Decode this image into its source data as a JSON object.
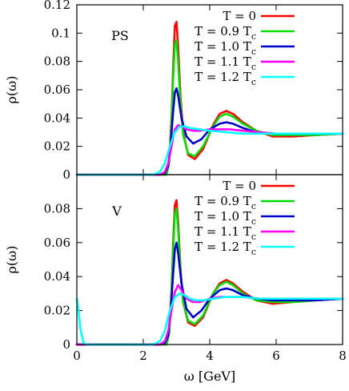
{
  "chart_data": [
    {
      "type": "line",
      "panel_label": "PS",
      "xlabel": "",
      "ylabel": "ρ(ω)",
      "xlim": [
        0,
        8
      ],
      "ylim": [
        0,
        0.12
      ],
      "x_ticks": [
        "",
        "",
        "",
        "",
        ""
      ],
      "y_ticks": [
        "0",
        "0.02",
        "0.04",
        "0.06",
        "0.08",
        "0.1",
        "0.12"
      ],
      "y_tick_values": [
        0,
        0.02,
        0.04,
        0.06,
        0.08,
        0.1,
        0.12
      ],
      "legend_position": "top-right",
      "series": [
        {
          "name": "T = 0",
          "name_main": "T = 0",
          "name_sub": "",
          "color": "#ff0000",
          "x": [
            0,
            2.5,
            2.7,
            2.78,
            2.85,
            2.9,
            2.95,
            3.0,
            3.05,
            3.12,
            3.2,
            3.35,
            3.55,
            3.8,
            4.1,
            4.3,
            4.5,
            4.7,
            5.0,
            5.4,
            5.9,
            6.5,
            7.2,
            8.0
          ],
          "y": [
            0,
            0,
            0,
            0.01,
            0.04,
            0.075,
            0.105,
            0.108,
            0.09,
            0.055,
            0.03,
            0.014,
            0.011,
            0.018,
            0.035,
            0.043,
            0.045,
            0.043,
            0.037,
            0.031,
            0.027,
            0.027,
            0.028,
            0.029
          ]
        },
        {
          "name": "T = 0.9 Tc",
          "name_main": "T = 0.9 T",
          "name_sub": "c",
          "color": "#00dd00",
          "x": [
            0,
            2.5,
            2.7,
            2.78,
            2.85,
            2.9,
            2.95,
            3.0,
            3.05,
            3.12,
            3.2,
            3.35,
            3.55,
            3.8,
            4.1,
            4.3,
            4.5,
            4.7,
            5.0,
            5.4,
            5.9,
            6.5,
            7.2,
            8.0
          ],
          "y": [
            0,
            0,
            0,
            0.009,
            0.036,
            0.068,
            0.092,
            0.095,
            0.08,
            0.05,
            0.028,
            0.015,
            0.013,
            0.02,
            0.034,
            0.041,
            0.043,
            0.041,
            0.036,
            0.031,
            0.028,
            0.028,
            0.028,
            0.029
          ]
        },
        {
          "name": "T = 1.0 Tc",
          "name_main": "T = 1.0 T",
          "name_sub": "c",
          "color": "#0000cc",
          "x": [
            0,
            2.5,
            2.65,
            2.75,
            2.82,
            2.9,
            2.95,
            3.0,
            3.05,
            3.15,
            3.3,
            3.5,
            3.75,
            4.0,
            4.3,
            4.5,
            4.7,
            5.0,
            5.4,
            5.9,
            6.5,
            7.2,
            8.0
          ],
          "y": [
            0,
            0,
            0.001,
            0.006,
            0.02,
            0.045,
            0.058,
            0.061,
            0.056,
            0.04,
            0.027,
            0.022,
            0.025,
            0.032,
            0.036,
            0.037,
            0.036,
            0.033,
            0.03,
            0.029,
            0.029,
            0.029,
            0.029
          ]
        },
        {
          "name": "T = 1.1 Tc",
          "name_main": "T = 1.1 T",
          "name_sub": "c",
          "color": "#ff00ff",
          "x": [
            0,
            2.5,
            2.65,
            2.75,
            2.85,
            2.95,
            3.05,
            3.15,
            3.3,
            3.5,
            3.7,
            4.0,
            4.3,
            4.6,
            5.0,
            5.5,
            6.0,
            7.0,
            8.0
          ],
          "y": [
            0,
            0,
            0.002,
            0.008,
            0.02,
            0.032,
            0.035,
            0.034,
            0.032,
            0.031,
            0.031,
            0.032,
            0.032,
            0.032,
            0.031,
            0.03,
            0.029,
            0.029,
            0.029
          ]
        },
        {
          "name": "T = 1.2 Tc",
          "name_main": "T = 1.2 T",
          "name_sub": "c",
          "color": "#00ffff",
          "x": [
            0,
            2.3,
            2.5,
            2.65,
            2.8,
            2.95,
            3.1,
            3.25,
            3.4,
            3.7,
            4.0,
            4.5,
            5.0,
            5.5,
            6.0,
            7.0,
            8.0
          ],
          "y": [
            0,
            0,
            0.002,
            0.008,
            0.02,
            0.03,
            0.034,
            0.034,
            0.033,
            0.032,
            0.031,
            0.03,
            0.029,
            0.029,
            0.029,
            0.029,
            0.029
          ]
        }
      ]
    },
    {
      "type": "line",
      "panel_label": "V",
      "xlabel": "ω [GeV]",
      "ylabel": "ρ(ω)",
      "xlim": [
        0,
        8
      ],
      "ylim": [
        0,
        0.1
      ],
      "x_ticks": [
        "0",
        "2",
        "4",
        "6",
        "8"
      ],
      "x_tick_values": [
        0,
        2,
        4,
        6,
        8
      ],
      "y_ticks": [
        "0",
        "0.02",
        "0.04",
        "0.06",
        "0.08",
        ""
      ],
      "y_tick_values": [
        0,
        0.02,
        0.04,
        0.06,
        0.08,
        0.1
      ],
      "legend_position": "top-right",
      "series": [
        {
          "name": "T = 0",
          "name_main": "T = 0",
          "name_sub": "",
          "color": "#ff0000",
          "x": [
            0,
            2.5,
            2.7,
            2.78,
            2.85,
            2.9,
            2.95,
            3.0,
            3.05,
            3.12,
            3.2,
            3.35,
            3.55,
            3.8,
            4.1,
            4.3,
            4.5,
            4.7,
            5.0,
            5.4,
            5.9,
            6.5,
            7.2,
            8.0
          ],
          "y": [
            0,
            0,
            0,
            0.008,
            0.032,
            0.06,
            0.082,
            0.085,
            0.072,
            0.045,
            0.025,
            0.013,
            0.011,
            0.016,
            0.03,
            0.036,
            0.038,
            0.036,
            0.031,
            0.026,
            0.024,
            0.025,
            0.026,
            0.027
          ]
        },
        {
          "name": "T = 0.9 Tc",
          "name_main": "T = 0.9 T",
          "name_sub": "c",
          "color": "#00dd00",
          "x": [
            0,
            2.5,
            2.7,
            2.78,
            2.85,
            2.9,
            2.95,
            3.0,
            3.05,
            3.12,
            3.2,
            3.35,
            3.55,
            3.8,
            4.1,
            4.3,
            4.5,
            4.7,
            5.0,
            5.4,
            5.9,
            6.5,
            7.2,
            8.0
          ],
          "y": [
            0,
            0,
            0,
            0.007,
            0.03,
            0.056,
            0.077,
            0.08,
            0.068,
            0.043,
            0.025,
            0.014,
            0.012,
            0.017,
            0.03,
            0.035,
            0.037,
            0.035,
            0.03,
            0.026,
            0.025,
            0.025,
            0.026,
            0.027
          ]
        },
        {
          "name": "T = 1.0 Tc",
          "name_main": "T = 1.0 T",
          "name_sub": "c",
          "color": "#0000cc",
          "x": [
            0,
            2.5,
            2.65,
            2.75,
            2.82,
            2.9,
            2.95,
            3.0,
            3.05,
            3.15,
            3.3,
            3.5,
            3.75,
            4.0,
            4.3,
            4.5,
            4.7,
            5.0,
            5.4,
            5.9,
            6.5,
            7.2,
            8.0
          ],
          "y": [
            0,
            0,
            0.001,
            0.005,
            0.018,
            0.042,
            0.056,
            0.06,
            0.054,
            0.036,
            0.021,
            0.016,
            0.02,
            0.027,
            0.032,
            0.033,
            0.032,
            0.029,
            0.027,
            0.026,
            0.026,
            0.026,
            0.027
          ]
        },
        {
          "name": "T = 1.1 Tc",
          "name_main": "T = 1.1 T",
          "name_sub": "c",
          "color": "#ff00ff",
          "x": [
            0,
            2.5,
            2.65,
            2.75,
            2.85,
            2.95,
            3.05,
            3.15,
            3.3,
            3.5,
            3.7,
            4.0,
            4.3,
            4.6,
            5.0,
            5.5,
            6.0,
            7.0,
            8.0
          ],
          "y": [
            0,
            0,
            0.002,
            0.008,
            0.02,
            0.031,
            0.035,
            0.032,
            0.027,
            0.025,
            0.025,
            0.027,
            0.028,
            0.028,
            0.028,
            0.027,
            0.027,
            0.027,
            0.027
          ]
        },
        {
          "name": "T = 1.2 Tc",
          "name_main": "T = 1.2 T",
          "name_sub": "c",
          "color": "#00ffff",
          "x": [
            0,
            0.05,
            0.1,
            0.2,
            0.3,
            2.3,
            2.5,
            2.65,
            2.8,
            2.95,
            3.1,
            3.25,
            3.4,
            3.6,
            3.8,
            4.1,
            4.5,
            5.0,
            5.5,
            6.0,
            7.0,
            8.0
          ],
          "y": [
            0.027,
            0.02,
            0.01,
            0.001,
            0,
            0,
            0.002,
            0.008,
            0.02,
            0.028,
            0.03,
            0.029,
            0.027,
            0.026,
            0.026,
            0.027,
            0.028,
            0.028,
            0.027,
            0.027,
            0.027,
            0.027
          ]
        }
      ]
    }
  ]
}
